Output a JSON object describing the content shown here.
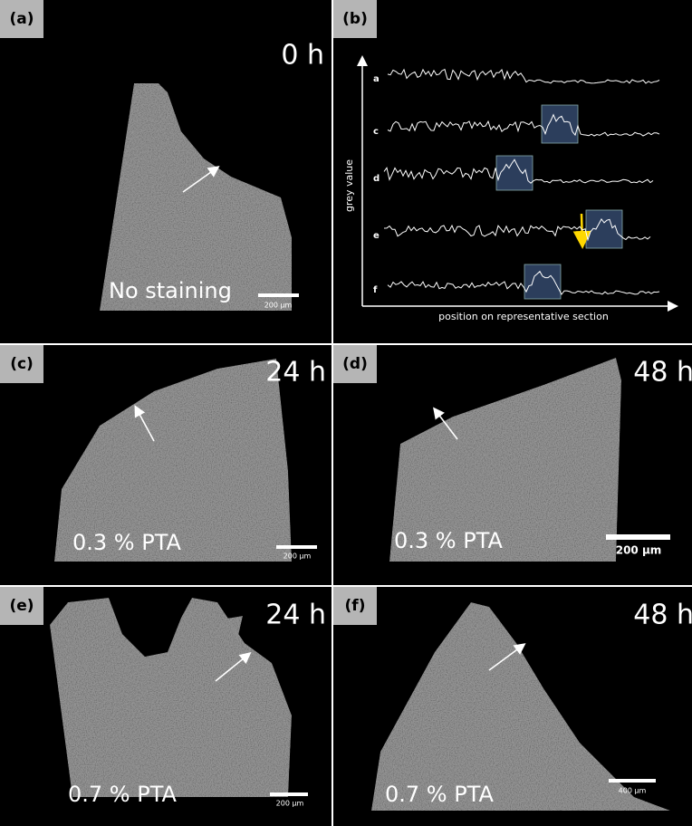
{
  "panels": [
    {
      "label": "(a)",
      "time": "0 h",
      "condition": "No staining",
      "scale_bar": "200 µm"
    },
    {
      "label": "(b)",
      "y_axis_label": "grey value",
      "x_axis_label": "position on representative section",
      "traces": [
        "a",
        "c",
        "d",
        "e",
        "f"
      ]
    },
    {
      "label": "(c)",
      "time": "24 h",
      "condition": "0.3 % PTA",
      "scale_bar": "200 µm"
    },
    {
      "label": "(d)",
      "time": "48 h",
      "condition": "0.3 % PTA",
      "scale_bar": "200 µm"
    },
    {
      "label": "(e)",
      "time": "24 h",
      "condition": "0.7 % PTA",
      "scale_bar": "200 µm"
    },
    {
      "label": "(f)",
      "time": "48 h",
      "condition": "0.7 % PTA",
      "scale_bar": "400 µm"
    }
  ]
}
